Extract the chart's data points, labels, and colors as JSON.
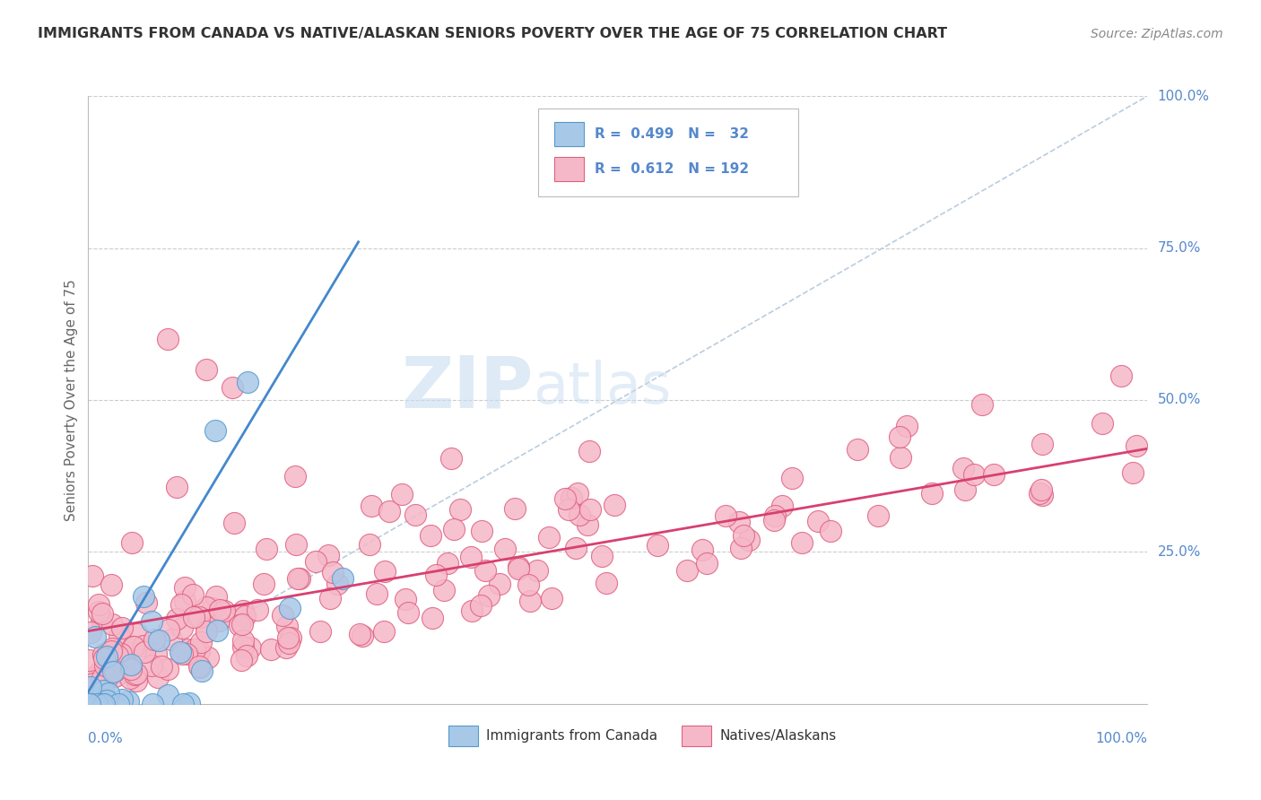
{
  "title": "IMMIGRANTS FROM CANADA VS NATIVE/ALASKAN SENIORS POVERTY OVER THE AGE OF 75 CORRELATION CHART",
  "source": "Source: ZipAtlas.com",
  "ylabel": "Seniors Poverty Over the Age of 75",
  "color_blue_fill": "#a8c8e8",
  "color_blue_edge": "#5599cc",
  "color_pink_fill": "#f5b8c8",
  "color_pink_edge": "#e06080",
  "color_blue_line": "#4488cc",
  "color_pink_line": "#d84070",
  "color_diag": "#bbccdd",
  "background_color": "#ffffff",
  "grid_color": "#cccccc",
  "watermark_color": "#c8ddf0",
  "right_label_color": "#5588cc",
  "title_color": "#333333",
  "source_color": "#888888",
  "ylabel_color": "#666666"
}
